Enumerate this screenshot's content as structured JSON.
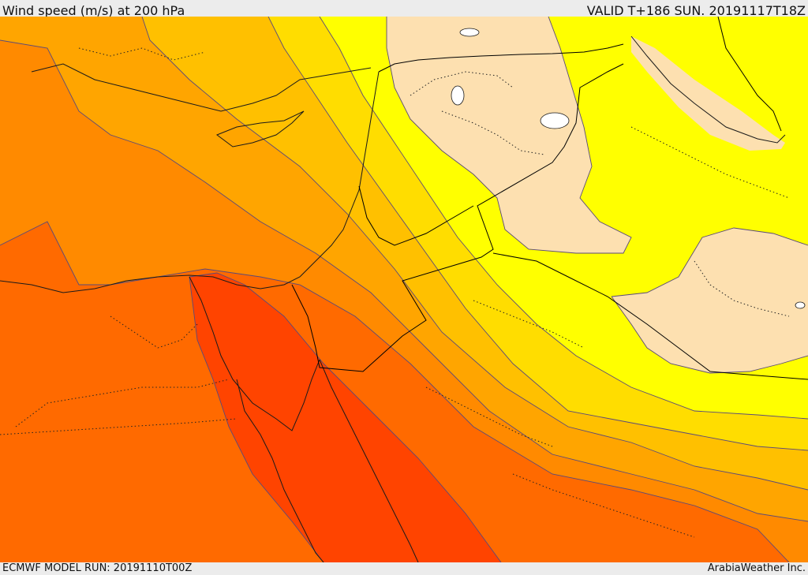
{
  "header": {
    "title": "Wind speed (m/s) at 200 hPa",
    "valid": "VALID T+186 SUN. 20191117T18Z"
  },
  "footer": {
    "model_run": "ECMWF MODEL RUN: 20191110T00Z",
    "credit": "ArabiaWeather Inc."
  },
  "colors": {
    "band_peach": "#fde0b0",
    "band_yellow": "#ffff00",
    "band_gold": "#ffdd00",
    "band_amber": "#ffc000",
    "band_orange_light": "#ffa500",
    "band_orange": "#ff8a00",
    "band_orange_dark": "#ff6a00",
    "band_red": "#ff4400"
  }
}
